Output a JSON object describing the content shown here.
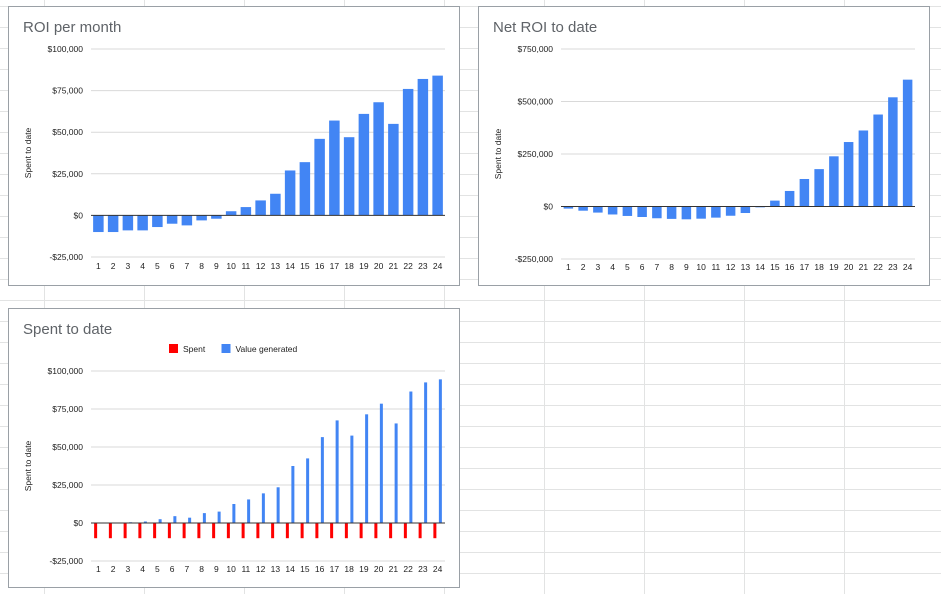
{
  "chart_data": [
    {
      "id": "roi-month",
      "type": "bar",
      "title": "ROI per month",
      "ylabel": "Spent to date",
      "ylim": [
        -25000,
        100000
      ],
      "yticks": [
        -25000,
        0,
        25000,
        50000,
        75000,
        100000
      ],
      "ytick_labels": [
        "-$25,000",
        "$0",
        "$25,000",
        "$50,000",
        "$75,000",
        "$100,000"
      ],
      "categories": [
        "1",
        "2",
        "3",
        "4",
        "5",
        "6",
        "7",
        "8",
        "9",
        "10",
        "11",
        "12",
        "13",
        "14",
        "15",
        "16",
        "17",
        "18",
        "19",
        "20",
        "21",
        "22",
        "23",
        "24"
      ],
      "series": [
        {
          "color": "#4285f4",
          "values": [
            -10000,
            -10000,
            -9000,
            -9000,
            -7000,
            -5000,
            -6000,
            -3000,
            -2000,
            2500,
            5000,
            9000,
            13000,
            27000,
            32000,
            46000,
            57000,
            47000,
            61000,
            68000,
            55000,
            76000,
            82000,
            84000
          ]
        }
      ],
      "legend": "none",
      "grid": true
    },
    {
      "id": "net-roi",
      "type": "bar",
      "title": "Net ROI to date",
      "ylabel": "Spent to date",
      "ylim": [
        -250000,
        750000
      ],
      "yticks": [
        -250000,
        0,
        250000,
        500000,
        750000
      ],
      "ytick_labels": [
        "-$250,000",
        "$0",
        "$250,000",
        "$500,000",
        "$750,000"
      ],
      "categories": [
        "1",
        "2",
        "3",
        "4",
        "5",
        "6",
        "7",
        "8",
        "9",
        "10",
        "11",
        "12",
        "13",
        "14",
        "15",
        "16",
        "17",
        "18",
        "19",
        "20",
        "21",
        "22",
        "23",
        "24"
      ],
      "series": [
        {
          "color": "#4285f4",
          "values": [
            -10000,
            -20000,
            -29000,
            -38000,
            -45000,
            -50000,
            -56000,
            -59000,
            -61000,
            -58000,
            -53000,
            -44000,
            -31000,
            -4000,
            28000,
            74000,
            131000,
            178000,
            239000,
            307000,
            362000,
            438000,
            520000,
            604000
          ]
        }
      ],
      "legend": "none",
      "grid": true
    },
    {
      "id": "spent",
      "type": "bar",
      "title": "Spent to date",
      "ylabel": "Spent to date",
      "ylim": [
        -25000,
        100000
      ],
      "yticks": [
        -25000,
        0,
        25000,
        50000,
        75000,
        100000
      ],
      "ytick_labels": [
        "-$25,000",
        "$0",
        "$25,000",
        "$50,000",
        "$75,000",
        "$100,000"
      ],
      "categories": [
        "1",
        "2",
        "3",
        "4",
        "5",
        "6",
        "7",
        "8",
        "9",
        "10",
        "11",
        "12",
        "13",
        "14",
        "15",
        "16",
        "17",
        "18",
        "19",
        "20",
        "21",
        "22",
        "23",
        "24"
      ],
      "series": [
        {
          "name": "Spent",
          "color": "#ff0000",
          "values": [
            -10000,
            -10000,
            -10000,
            -10000,
            -10000,
            -10000,
            -10000,
            -10000,
            -10000,
            -10000,
            -10000,
            -10000,
            -10000,
            -10000,
            -10000,
            -10000,
            -10000,
            -10000,
            -10000,
            -10000,
            -10000,
            -10000,
            -10000,
            -10000
          ]
        },
        {
          "name": "Value generated",
          "color": "#4285f4",
          "values": [
            0,
            0,
            500,
            1000,
            2500,
            4500,
            3500,
            6500,
            7500,
            12500,
            15500,
            19500,
            23500,
            37500,
            42500,
            56500,
            67500,
            57500,
            71500,
            78500,
            65500,
            86500,
            92500,
            94500
          ]
        }
      ],
      "legend": "top",
      "grid": true
    }
  ]
}
